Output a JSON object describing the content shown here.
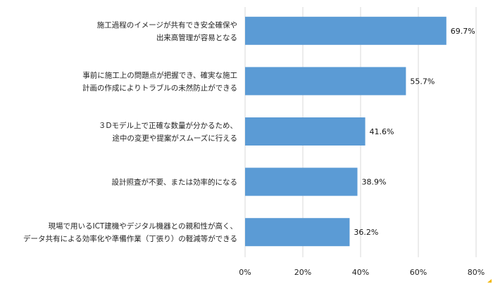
{
  "chart_data": {
    "type": "bar",
    "orientation": "horizontal",
    "categories": [
      [
        "施工過程のイメージが共有でき安全確保や",
        "出来高管理が容易となる"
      ],
      [
        "事前に施工上の問題点が把握でき、確実な施工",
        "計画の作成によりトラブルの未然防止ができる"
      ],
      [
        "３Dモデル上で正確な数量が分かるため、",
        "途中の変更や提案がスムーズに行える"
      ],
      [
        "設計照査が不要、または効率的になる"
      ],
      [
        "現場で用いるICT建機やデジタル機器との親和性が高く、",
        "データ共有による効率化や準備作業（丁張り）の軽減等ができる"
      ]
    ],
    "values": [
      69.7,
      55.7,
      41.6,
      38.9,
      36.2
    ],
    "value_labels": [
      "69.7%",
      "55.7%",
      "41.6%",
      "38.9%",
      "36.2%"
    ],
    "xlim": [
      0,
      80
    ],
    "xticks": [
      0,
      20,
      40,
      60,
      80
    ],
    "xtick_labels": [
      "0%",
      "20%",
      "40%",
      "60%",
      "80%"
    ],
    "grid": "vertical",
    "legend": "none",
    "colors": {
      "bar": "#5b9bd5",
      "grid": "#d9d9d9",
      "accent": "#f2b705"
    }
  }
}
